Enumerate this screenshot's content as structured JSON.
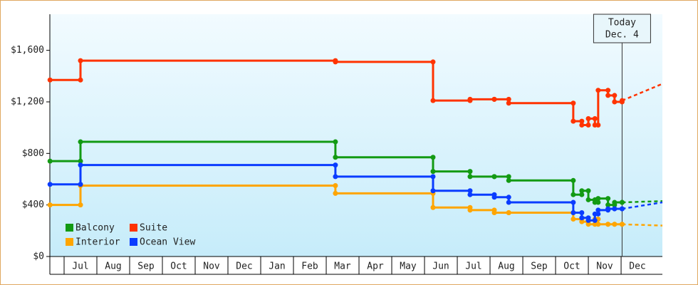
{
  "chart_data": {
    "type": "step-line",
    "categories": [
      "Jul",
      "Aug",
      "Sep",
      "Oct",
      "Nov",
      "Dec",
      "Jan",
      "Feb",
      "Mar",
      "Apr",
      "May",
      "Jun",
      "Jul",
      "Aug",
      "Sep",
      "Oct",
      "Nov",
      "Dec"
    ],
    "x": [
      -0.43,
      0.5,
      8.28,
      11.26,
      12.39,
      13.13,
      13.57,
      15.54,
      15.8,
      16.0,
      16.2,
      16.3,
      16.6,
      16.8,
      17.03
    ],
    "xlim": [
      -0.435,
      18.26
    ],
    "ylim": [
      0,
      1880
    ],
    "yticks": [
      {
        "value": 0,
        "label": "$0"
      },
      {
        "value": 400,
        "label": "$400"
      },
      {
        "value": 800,
        "label": "$800"
      },
      {
        "value": 1200,
        "label": "$1,200"
      },
      {
        "value": 1600,
        "label": "$1,600"
      }
    ],
    "forecast_x": [
      17.03,
      18.26
    ],
    "series": [
      {
        "name": "Balcony",
        "color": "#139a13",
        "values": [
          740,
          890,
          770,
          660,
          620,
          620,
          590,
          480,
          510,
          440,
          420,
          450,
          400,
          420,
          420
        ],
        "forecast_values": [
          420,
          430
        ]
      },
      {
        "name": "Suite",
        "color": "#ff3300",
        "values": [
          1370,
          1520,
          1510,
          1210,
          1220,
          1220,
          1190,
          1050,
          1020,
          1070,
          1020,
          1290,
          1250,
          1200,
          1210
        ],
        "forecast_values": [
          1210,
          1340
        ]
      },
      {
        "name": "Interior",
        "color": "#ffa500",
        "values": [
          400,
          550,
          490,
          380,
          360,
          340,
          340,
          290,
          270,
          250,
          290,
          250,
          250,
          250,
          250
        ],
        "forecast_values": [
          250,
          240
        ]
      },
      {
        "name": "Ocean View",
        "color": "#0a3cff",
        "values": [
          560,
          710,
          620,
          510,
          480,
          460,
          420,
          340,
          300,
          280,
          330,
          360,
          370,
          370,
          370
        ],
        "forecast_values": [
          370,
          420
        ]
      }
    ],
    "annotation": {
      "x": 17.03,
      "lines": [
        "Today",
        "Dec. 4"
      ]
    },
    "legend": "lower-left"
  }
}
